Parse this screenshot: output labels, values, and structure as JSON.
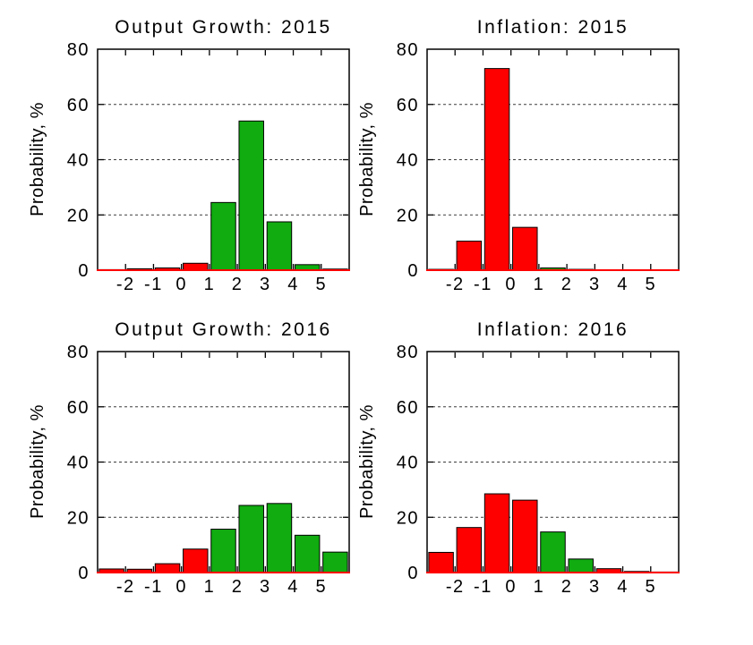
{
  "page": {
    "background": "#ffffff"
  },
  "palette": {
    "red": "#ff0000",
    "green": "#10ac10",
    "edge": "#000000",
    "grid": "#3c3c3c",
    "axis": "#000000",
    "baseline": "#ff0000",
    "text": "#000000"
  },
  "chart_data": [
    {
      "type": "bar",
      "title": "Output Growth: 2015",
      "xlabel": "",
      "ylabel": "Probability, %",
      "ylim": [
        0,
        80
      ],
      "yticks": [
        0,
        20,
        40,
        60,
        80
      ],
      "grid_y": [
        20,
        40,
        60
      ],
      "grid": "dashed",
      "xlim": [
        -3,
        6
      ],
      "xticks": [
        -2,
        -1,
        0,
        1,
        2,
        3,
        4,
        5
      ],
      "bar_width": 0.88,
      "bin_centers": [
        -2.5,
        -1.5,
        -0.5,
        0.5,
        1.5,
        2.5,
        3.5,
        4.5,
        5.5
      ],
      "values": [
        0.1,
        0.5,
        0.8,
        2.5,
        24.5,
        54,
        17.5,
        2,
        0.4
      ],
      "bar_colors": [
        "red",
        "red",
        "red",
        "red",
        "green",
        "green",
        "green",
        "green",
        "green"
      ]
    },
    {
      "type": "bar",
      "title": "Inflation: 2015",
      "xlabel": "",
      "ylabel": "Probability, %",
      "ylim": [
        0,
        80
      ],
      "yticks": [
        0,
        20,
        40,
        60,
        80
      ],
      "grid_y": [
        20,
        40,
        60
      ],
      "grid": "dashed",
      "xlim": [
        -3,
        6
      ],
      "xticks": [
        -2,
        -1,
        0,
        1,
        2,
        3,
        4,
        5
      ],
      "bar_width": 0.88,
      "bin_centers": [
        -2.5,
        -1.5,
        -0.5,
        0.5,
        1.5,
        2.5,
        3.5,
        4.5,
        5.5
      ],
      "values": [
        0.3,
        10.5,
        73,
        15.5,
        0.8,
        0.3,
        0,
        0,
        0
      ],
      "bar_colors": [
        "red",
        "red",
        "red",
        "red",
        "green",
        "green",
        "red",
        "red",
        "red"
      ]
    },
    {
      "type": "bar",
      "title": "Output Growth: 2016",
      "xlabel": "",
      "ylabel": "Probability, %",
      "ylim": [
        0,
        80
      ],
      "yticks": [
        0,
        20,
        40,
        60,
        80
      ],
      "grid_y": [
        20,
        40,
        60
      ],
      "grid": "dashed",
      "xlim": [
        -3,
        6
      ],
      "xticks": [
        -2,
        -1,
        0,
        1,
        2,
        3,
        4,
        5
      ],
      "bar_width": 0.88,
      "bin_centers": [
        -2.5,
        -1.5,
        -0.5,
        0.5,
        1.5,
        2.5,
        3.5,
        4.5,
        5.5
      ],
      "values": [
        1.3,
        1.2,
        3.2,
        8.5,
        15.7,
        24.3,
        25,
        13.5,
        7.4
      ],
      "bar_colors": [
        "red",
        "red",
        "red",
        "red",
        "green",
        "green",
        "green",
        "green",
        "green"
      ]
    },
    {
      "type": "bar",
      "title": "Inflation: 2016",
      "xlabel": "",
      "ylabel": "Probability, %",
      "ylim": [
        0,
        80
      ],
      "yticks": [
        0,
        20,
        40,
        60,
        80
      ],
      "grid_y": [
        20,
        40,
        60
      ],
      "grid": "dashed",
      "xlim": [
        -3,
        6
      ],
      "xticks": [
        -2,
        -1,
        0,
        1,
        2,
        3,
        4,
        5
      ],
      "bar_width": 0.88,
      "bin_centers": [
        -2.5,
        -1.5,
        -0.5,
        0.5,
        1.5,
        2.5,
        3.5,
        4.5,
        5.5
      ],
      "values": [
        7.3,
        16.3,
        28.5,
        26.2,
        14.7,
        4.9,
        1.4,
        0.4,
        0.15
      ],
      "bar_colors": [
        "red",
        "red",
        "red",
        "red",
        "green",
        "green",
        "red",
        "red",
        "red"
      ]
    }
  ]
}
